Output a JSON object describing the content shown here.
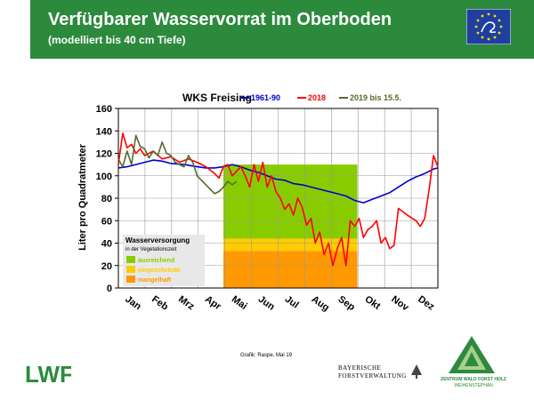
{
  "header": {
    "title": "Verfügbarer Wasservorrat im Oberboden",
    "subtitle": "(modelliert bis 40 cm Tiefe)"
  },
  "colors": {
    "header_green": "#2c8a3c",
    "band_good": "#88cc00",
    "band_limited": "#ffcc00",
    "band_low": "#ff9900",
    "series_1961": "#0000cc",
    "series_2018": "#ff0000",
    "series_2019": "#556b2f"
  },
  "chart_data": {
    "type": "line",
    "title": "WKS Freising",
    "ylabel": "Liter pro Quadratmeter",
    "xlabel": "",
    "ylim": [
      0,
      160
    ],
    "yticks": [
      0,
      20,
      40,
      60,
      80,
      100,
      120,
      140,
      160
    ],
    "xlim": [
      0,
      365
    ],
    "months": [
      "Jan",
      "Feb",
      "Mrz",
      "Apr",
      "Mai",
      "Jun",
      "Jul",
      "Aug",
      "Sep",
      "Okt",
      "Nov",
      "Dez"
    ],
    "grid": true,
    "legend_position": "top",
    "bands": [
      {
        "label": "ausreichend",
        "from_day": 120,
        "to_day": 273,
        "y0": 44,
        "y1": 110
      },
      {
        "label": "eingeschränkt",
        "from_day": 120,
        "to_day": 273,
        "y0": 33,
        "y1": 44
      },
      {
        "label": "mangelhaft",
        "from_day": 120,
        "to_day": 273,
        "y0": 0,
        "y1": 33
      }
    ],
    "band_legend": {
      "title": "Wasserversorgung",
      "subtitle": "in der Vegetationszeit"
    },
    "series": [
      {
        "name": "1961-90",
        "color": "#0000cc",
        "x": [
          0,
          10,
          20,
          30,
          40,
          50,
          60,
          75,
          90,
          100,
          110,
          120,
          130,
          140,
          150,
          160,
          170,
          180,
          190,
          200,
          210,
          220,
          230,
          240,
          250,
          260,
          270,
          280,
          290,
          300,
          310,
          320,
          330,
          340,
          350,
          360,
          365
        ],
        "y": [
          107,
          108,
          110,
          112,
          114,
          113,
          111,
          110,
          108,
          107,
          107,
          108,
          110,
          108,
          105,
          103,
          100,
          97,
          96,
          93,
          92,
          90,
          88,
          86,
          84,
          82,
          78,
          76,
          79,
          82,
          85,
          90,
          95,
          99,
          102,
          106,
          107
        ]
      },
      {
        "name": "2018",
        "color": "#ff0000",
        "x": [
          0,
          5,
          10,
          15,
          20,
          25,
          30,
          40,
          50,
          60,
          70,
          80,
          90,
          100,
          110,
          115,
          120,
          125,
          130,
          135,
          140,
          145,
          150,
          155,
          160,
          165,
          170,
          175,
          180,
          185,
          190,
          195,
          200,
          205,
          210,
          215,
          220,
          225,
          230,
          235,
          240,
          245,
          250,
          255,
          260,
          265,
          270,
          275,
          280,
          285,
          290,
          295,
          300,
          305,
          310,
          315,
          320,
          330,
          340,
          345,
          350,
          355,
          360,
          365
        ],
        "y": [
          110,
          138,
          125,
          128,
          120,
          124,
          118,
          122,
          115,
          117,
          112,
          115,
          112,
          108,
          102,
          98,
          108,
          110,
          100,
          104,
          108,
          100,
          90,
          110,
          95,
          112,
          90,
          100,
          86,
          80,
          70,
          75,
          65,
          80,
          72,
          56,
          62,
          40,
          50,
          30,
          40,
          20,
          35,
          45,
          20,
          60,
          55,
          62,
          45,
          52,
          55,
          60,
          40,
          45,
          35,
          38,
          71,
          65,
          60,
          55,
          62,
          88,
          118,
          108
        ]
      },
      {
        "name": "2019 bis 15.5.",
        "color": "#556b2f",
        "x": [
          0,
          5,
          10,
          15,
          20,
          25,
          30,
          35,
          40,
          45,
          50,
          55,
          60,
          65,
          70,
          75,
          80,
          85,
          90,
          95,
          100,
          105,
          110,
          115,
          120,
          125,
          130,
          135
        ],
        "y": [
          115,
          108,
          122,
          110,
          136,
          126,
          124,
          116,
          122,
          118,
          130,
          120,
          118,
          112,
          110,
          108,
          118,
          112,
          100,
          96,
          92,
          88,
          84,
          86,
          90,
          95,
          92,
          95
        ]
      }
    ]
  },
  "footer": {
    "credit": "Grafik: Raspe, Mai 19",
    "bf_line1": "BAYERISCHE",
    "bf_line2": "FORSTVERWALTUNG",
    "zw_line1": "ZENTRUM WALD FORST HOLZ",
    "zw_line2": "WEIHENSTEPHAN",
    "lwf": "LWF"
  }
}
